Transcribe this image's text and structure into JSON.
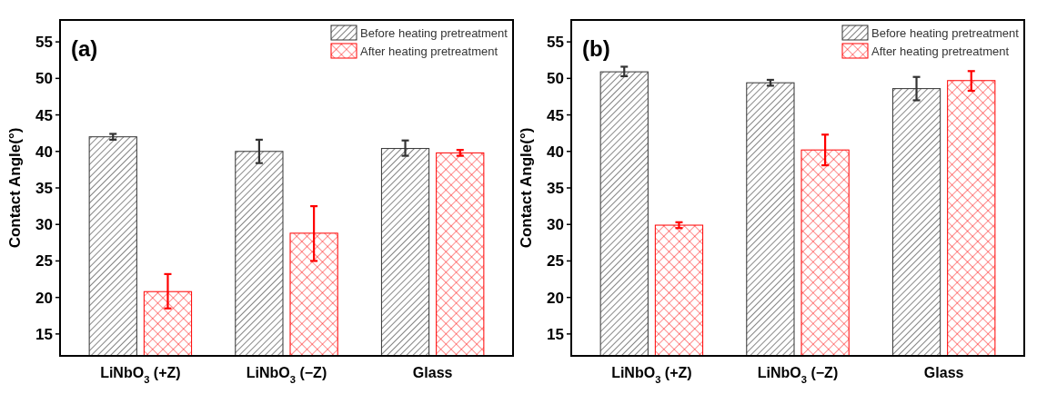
{
  "chart_data": [
    {
      "type": "bar",
      "title": "(a)",
      "ylabel": "Contact Angle(°)",
      "categories": [
        "LiNbO$_{3}$ (+Z)",
        "LiNbO$_{3}$ (−Z)",
        "Glass"
      ],
      "ylim": [
        12,
        58
      ],
      "yticks": [
        15,
        20,
        25,
        30,
        35,
        40,
        45,
        50,
        55
      ],
      "grid": false,
      "legend": "top right",
      "series": [
        {
          "name": "Before heating pretreatment",
          "color": "#333333",
          "values": [
            42.0,
            40.0,
            40.4
          ],
          "errors": [
            [
              41.6,
              42.4
            ],
            [
              38.4,
              41.6
            ],
            [
              39.4,
              41.5
            ]
          ]
        },
        {
          "name": "After heating pretreatment",
          "color": "#ff0000",
          "values": [
            20.8,
            28.8,
            39.8
          ],
          "errors": [
            [
              18.5,
              23.2
            ],
            [
              25.0,
              32.5
            ],
            [
              39.4,
              40.2
            ]
          ]
        }
      ]
    },
    {
      "type": "bar",
      "title": "(b)",
      "ylabel": "Contact Angle(°)",
      "categories": [
        "LiNbO$_{3}$ (+Z)",
        "LiNbO$_{3}$ (−Z)",
        "Glass"
      ],
      "ylim": [
        12,
        58
      ],
      "yticks": [
        15,
        20,
        25,
        30,
        35,
        40,
        45,
        50,
        55
      ],
      "grid": false,
      "legend": "top right",
      "series": [
        {
          "name": "Before heating pretreatment",
          "color": "#333333",
          "values": [
            50.9,
            49.4,
            48.6
          ],
          "errors": [
            [
              50.3,
              51.6
            ],
            [
              49.0,
              49.8
            ],
            [
              47.0,
              50.2
            ]
          ]
        },
        {
          "name": "After heating pretreatment",
          "color": "#ff0000",
          "values": [
            29.9,
            40.2,
            49.7
          ],
          "errors": [
            [
              29.5,
              30.3
            ],
            [
              38.1,
              42.3
            ],
            [
              48.3,
              51.0
            ]
          ]
        }
      ]
    }
  ]
}
